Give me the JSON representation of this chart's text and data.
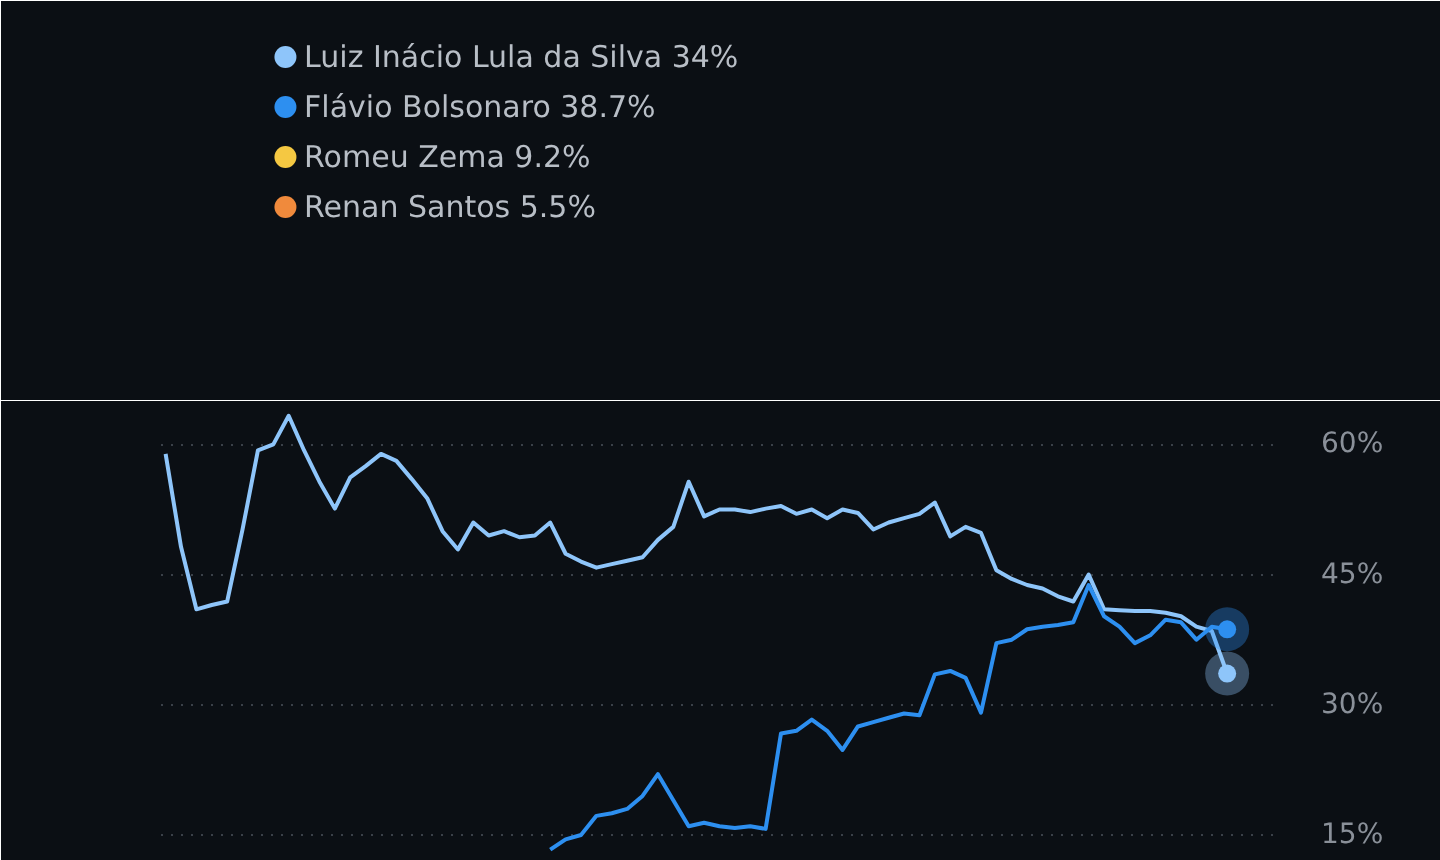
{
  "chart_data": {
    "type": "line",
    "categories": [
      null,
      null,
      null,
      null,
      null,
      null,
      null,
      null,
      null,
      null,
      null,
      null,
      null,
      null,
      null,
      null,
      null,
      null,
      null,
      null,
      null,
      null,
      null,
      null,
      null,
      null,
      null,
      null,
      null,
      null,
      null,
      null,
      null,
      null,
      null,
      null,
      null,
      null,
      null,
      null,
      null,
      null,
      null,
      null,
      null,
      null,
      null,
      null,
      null,
      null,
      null,
      null,
      null,
      null,
      null,
      null,
      null,
      null,
      null,
      null,
      null,
      null,
      null,
      null,
      null,
      null,
      null,
      null,
      null,
      null
    ],
    "series": [
      {
        "name": "Luiz Inácio Lula da Silva 34%",
        "color": "#8ec5fa",
        "values": [
          58.9,
          48.2,
          41.0,
          41.5,
          41.9,
          50.2,
          59.3,
          60.0,
          63.3,
          59.3,
          55.7,
          52.6,
          56.2,
          57.5,
          58.9,
          58.1,
          56.0,
          53.8,
          50.0,
          47.9,
          51.0,
          49.5,
          50.0,
          49.3,
          49.5,
          51.0,
          47.4,
          46.5,
          45.8,
          46.2,
          46.6,
          47.0,
          49.0,
          50.5,
          55.7,
          51.7,
          52.5,
          52.5,
          52.2,
          52.6,
          52.9,
          52.0,
          52.5,
          51.5,
          52.5,
          52.1,
          50.2,
          51.0,
          51.5,
          52.0,
          53.3,
          49.4,
          50.5,
          49.8,
          45.5,
          44.5,
          43.8,
          43.4,
          42.5,
          41.9,
          45.0,
          41.0,
          40.9,
          40.8,
          40.8,
          40.6,
          40.2,
          39.0,
          38.5,
          33.6
        ]
      },
      {
        "name": "Flávio Bolsonaro 38.7%",
        "color": "#2d8ff0",
        "values": [
          null,
          null,
          null,
          null,
          null,
          null,
          null,
          null,
          null,
          null,
          null,
          null,
          null,
          null,
          null,
          null,
          null,
          null,
          null,
          null,
          null,
          null,
          null,
          null,
          null,
          13.3,
          14.5,
          15.0,
          17.2,
          17.5,
          18.0,
          19.5,
          22.0,
          19.0,
          16.0,
          16.4,
          16.0,
          15.8,
          16.0,
          15.7,
          26.7,
          27.0,
          28.3,
          27.0,
          24.8,
          27.5,
          28.0,
          28.5,
          29.0,
          28.8,
          33.5,
          33.9,
          33.1,
          29.1,
          37.1,
          37.5,
          38.7,
          39.0,
          39.2,
          39.5,
          43.8,
          40.2,
          39.0,
          37.1,
          38.0,
          39.8,
          39.5,
          37.5,
          39.0,
          38.7
        ]
      },
      {
        "name": "Romeu Zema 9.2%",
        "color": "#f5c842",
        "values": [
          null,
          null,
          null,
          null,
          null,
          null,
          null,
          null,
          null,
          null,
          null,
          null,
          null,
          null,
          null,
          null,
          null,
          null,
          null,
          null,
          null,
          null,
          null,
          null,
          null,
          null,
          null,
          null,
          null,
          null,
          null,
          null,
          null,
          null,
          null,
          null,
          null,
          null,
          null,
          null,
          null,
          null,
          null,
          null,
          null,
          null,
          null,
          null,
          null,
          null,
          null,
          null,
          null,
          null,
          null,
          null,
          null,
          null,
          null,
          null,
          null,
          null,
          null,
          null,
          null,
          null,
          null,
          null,
          null,
          null
        ]
      },
      {
        "name": "Renan Santos 5.5%",
        "color": "#f08a3c",
        "values": [
          null,
          null,
          null,
          null,
          null,
          null,
          null,
          null,
          null,
          null,
          null,
          null,
          null,
          null,
          null,
          null,
          null,
          null,
          null,
          null,
          null,
          null,
          null,
          null,
          null,
          null,
          null,
          null,
          null,
          null,
          null,
          null,
          null,
          null,
          null,
          null,
          null,
          null,
          null,
          null,
          null,
          null,
          null,
          null,
          null,
          null,
          null,
          null,
          null,
          null,
          null,
          null,
          null,
          null,
          null,
          null,
          null,
          null,
          null,
          null,
          null,
          null,
          null,
          null,
          null,
          null,
          null,
          null,
          null,
          null
        ]
      }
    ],
    "ylim": [
      12,
      65
    ],
    "yticks": [
      {
        "value": 15,
        "label": "15%"
      },
      {
        "value": 30,
        "label": "30%"
      },
      {
        "value": 45,
        "label": "45%"
      },
      {
        "value": 60,
        "label": "60%"
      }
    ],
    "grid": "y",
    "legend": "top left",
    "tick_labels": "y"
  }
}
